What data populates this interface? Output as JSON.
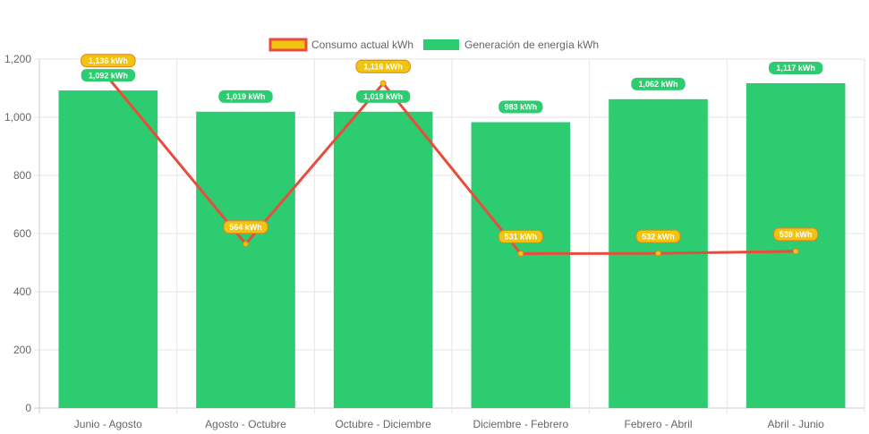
{
  "chart_data": {
    "type": "bar",
    "categories": [
      "Junio - Agosto",
      "Agosto - Octubre",
      "Octubre - Diciembre",
      "Diciembre - Febrero",
      "Febrero - Abril",
      "Abril - Junio"
    ],
    "series": [
      {
        "name": "Consumo actual kWh",
        "type": "line",
        "values": [
          1136,
          564,
          1116,
          531,
          532,
          539
        ],
        "labels": [
          "1,136 kWh",
          "564 kWh",
          "1,116 kWh",
          "531 kWh",
          "532 kWh",
          "539 kWh"
        ],
        "color": "#e74c3c",
        "label_bg": "#f1c40f",
        "label_border": "#e67e22"
      },
      {
        "name": "Generación de energía kWh",
        "type": "bar",
        "values": [
          1092,
          1019,
          1019,
          983,
          1062,
          1117
        ],
        "labels": [
          "1,092 kWh",
          "1,019 kWh",
          "1,019 kWh",
          "983 kWh",
          "1,062 kWh",
          "1,117 kWh"
        ],
        "color": "#2ecc71"
      }
    ],
    "yticks": [
      "0",
      "200",
      "400",
      "600",
      "800",
      "1,000",
      "1,200"
    ],
    "ylim": [
      0,
      1200
    ],
    "grid": true,
    "legend_position": "top"
  }
}
